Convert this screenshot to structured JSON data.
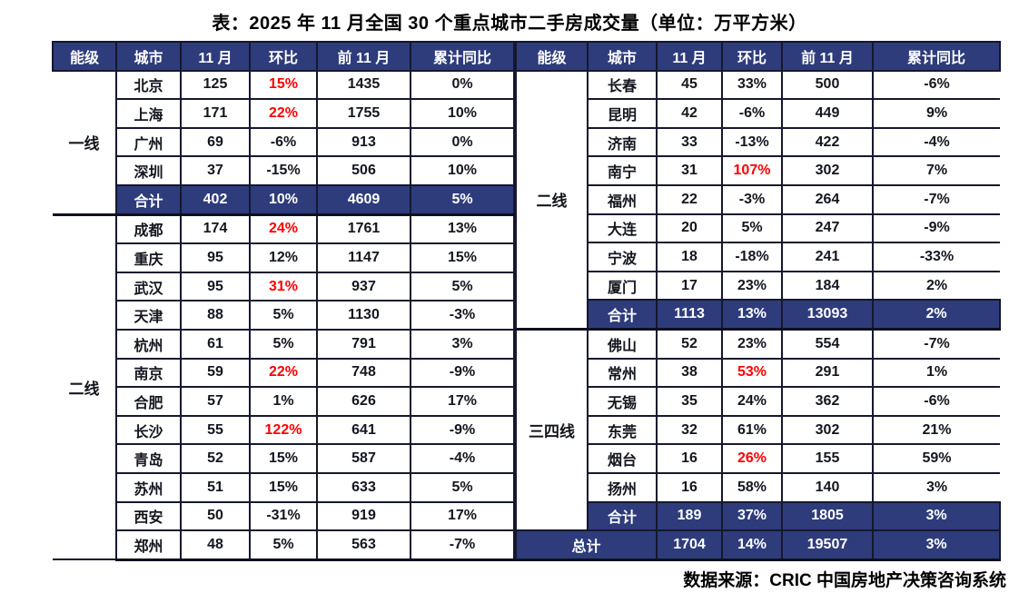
{
  "source": "数据来源：CRIC 中国房地产决策咨询系统",
  "colors": {
    "header_bg": "#2e3c7c",
    "subtotal_bg": "#2e3c7c",
    "accent_red": "#ff0000",
    "border": "#15182e"
  },
  "chart_data": {
    "type": "table",
    "title": "表：2025 年 11 月全国 30 个重点城市二手房成交量（单位：万平方米）",
    "columns": [
      "能级",
      "城市",
      "11 月",
      "环比",
      "前 11 月",
      "累计同比"
    ],
    "column_meanings": [
      "tier",
      "city",
      "november-volume",
      "month-over-month",
      "first-11-months",
      "cumulative-yoy"
    ],
    "tables": [
      {
        "id": "left",
        "groups": [
          {
            "tier": "一线",
            "rows": [
              {
                "city": "北京",
                "values": [
                  "125",
                  "15%",
                  "1435",
                  "0%"
                ],
                "mom_red": true
              },
              {
                "city": "上海",
                "values": [
                  "171",
                  "22%",
                  "1755",
                  "10%"
                ],
                "mom_red": true
              },
              {
                "city": "广州",
                "values": [
                  "69",
                  "-6%",
                  "913",
                  "0%"
                ]
              },
              {
                "city": "深圳",
                "values": [
                  "37",
                  "-15%",
                  "506",
                  "10%"
                ]
              },
              {
                "subtotal": true,
                "city": "合计",
                "values": [
                  "402",
                  "10%",
                  "4609",
                  "5%"
                ]
              }
            ]
          },
          {
            "tier": "二线",
            "rows": [
              {
                "city": "成都",
                "values": [
                  "174",
                  "24%",
                  "1761",
                  "13%"
                ],
                "mom_red": true
              },
              {
                "city": "重庆",
                "values": [
                  "95",
                  "12%",
                  "1147",
                  "15%"
                ]
              },
              {
                "city": "武汉",
                "values": [
                  "95",
                  "31%",
                  "937",
                  "5%"
                ],
                "mom_red": true
              },
              {
                "city": "天津",
                "values": [
                  "88",
                  "5%",
                  "1130",
                  "-3%"
                ]
              },
              {
                "city": "杭州",
                "values": [
                  "61",
                  "5%",
                  "791",
                  "3%"
                ]
              },
              {
                "city": "南京",
                "values": [
                  "59",
                  "22%",
                  "748",
                  "-9%"
                ],
                "mom_red": true
              },
              {
                "city": "合肥",
                "values": [
                  "57",
                  "1%",
                  "626",
                  "17%"
                ]
              },
              {
                "city": "长沙",
                "values": [
                  "55",
                  "122%",
                  "641",
                  "-9%"
                ],
                "mom_red": true
              },
              {
                "city": "青岛",
                "values": [
                  "52",
                  "15%",
                  "587",
                  "-4%"
                ]
              },
              {
                "city": "苏州",
                "values": [
                  "51",
                  "15%",
                  "633",
                  "5%"
                ]
              },
              {
                "city": "西安",
                "values": [
                  "50",
                  "-31%",
                  "919",
                  "17%"
                ]
              },
              {
                "city": "郑州",
                "values": [
                  "48",
                  "5%",
                  "563",
                  "-7%"
                ]
              }
            ]
          }
        ]
      },
      {
        "id": "right",
        "groups": [
          {
            "tier": "二线",
            "rows": [
              {
                "city": "长春",
                "values": [
                  "45",
                  "33%",
                  "500",
                  "-6%"
                ]
              },
              {
                "city": "昆明",
                "values": [
                  "42",
                  "-6%",
                  "449",
                  "9%"
                ]
              },
              {
                "city": "济南",
                "values": [
                  "33",
                  "-13%",
                  "422",
                  "-4%"
                ]
              },
              {
                "city": "南宁",
                "values": [
                  "31",
                  "107%",
                  "302",
                  "7%"
                ],
                "mom_red": true
              },
              {
                "city": "福州",
                "values": [
                  "22",
                  "-3%",
                  "264",
                  "-7%"
                ]
              },
              {
                "city": "大连",
                "values": [
                  "20",
                  "5%",
                  "247",
                  "-9%"
                ]
              },
              {
                "city": "宁波",
                "values": [
                  "18",
                  "-18%",
                  "241",
                  "-33%"
                ]
              },
              {
                "city": "厦门",
                "values": [
                  "17",
                  "23%",
                  "184",
                  "2%"
                ]
              },
              {
                "subtotal": true,
                "city": "合计",
                "values": [
                  "1113",
                  "13%",
                  "13093",
                  "2%"
                ]
              }
            ]
          },
          {
            "tier": "三四线",
            "rows": [
              {
                "city": "佛山",
                "values": [
                  "52",
                  "23%",
                  "554",
                  "-7%"
                ]
              },
              {
                "city": "常州",
                "values": [
                  "38",
                  "53%",
                  "291",
                  "1%"
                ],
                "mom_red": true
              },
              {
                "city": "无锡",
                "values": [
                  "35",
                  "24%",
                  "362",
                  "-6%"
                ]
              },
              {
                "city": "东莞",
                "values": [
                  "32",
                  "61%",
                  "302",
                  "21%"
                ]
              },
              {
                "city": "烟台",
                "values": [
                  "16",
                  "26%",
                  "155",
                  "59%"
                ],
                "mom_red": true
              },
              {
                "city": "扬州",
                "values": [
                  "16",
                  "58%",
                  "140",
                  "3%"
                ]
              },
              {
                "subtotal": true,
                "city": "合计",
                "values": [
                  "189",
                  "37%",
                  "1805",
                  "3%"
                ]
              }
            ]
          }
        ],
        "grand_total": {
          "label": "总计",
          "values": [
            "1704",
            "14%",
            "19507",
            "3%"
          ]
        }
      }
    ]
  }
}
